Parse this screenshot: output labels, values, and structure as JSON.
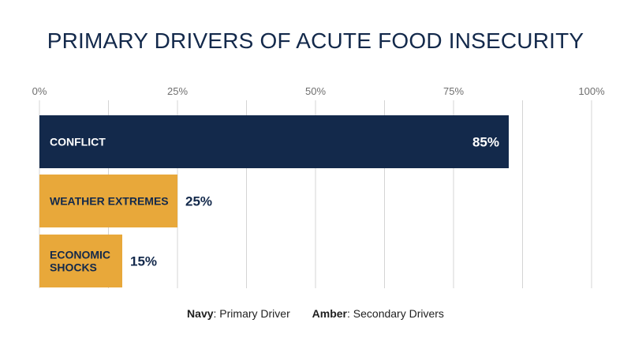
{
  "title": "PRIMARY DRIVERS OF ACUTE FOOD INSECURITY",
  "legend": {
    "items": [
      {
        "key": "Navy",
        "sep": ":",
        "text": " Primary Driver"
      },
      {
        "key": "Amber",
        "sep": ":",
        "text": " Secondary Drivers"
      }
    ]
  },
  "colors": {
    "navy": "#13294b",
    "amber": "#e8a83a",
    "grid": "#d4d4d4",
    "on_navy_text": "#ffffff",
    "on_amber_text": "#13294b",
    "value_outside_text": "#13294b"
  },
  "chart_data": {
    "type": "bar",
    "orientation": "horizontal",
    "title": "PRIMARY DRIVERS OF ACUTE FOOD INSECURITY",
    "xlim": [
      0,
      100
    ],
    "ticks": [
      0,
      25,
      50,
      75,
      100
    ],
    "tick_labels": [
      "0%",
      "25%",
      "50%",
      "75%",
      "100%"
    ],
    "grid": true,
    "legend_placement": "bottom",
    "bars": [
      {
        "label": [
          "CONFLICT"
        ],
        "value": 85,
        "value_label": "85%",
        "color_key": "navy",
        "value_position": "inside"
      },
      {
        "label": [
          "WEATHER EXTREMES"
        ],
        "value": 25,
        "value_label": "25%",
        "color_key": "amber",
        "value_position": "outside"
      },
      {
        "label": [
          "ECONOMIC",
          "SHOCKS"
        ],
        "value": 15,
        "value_label": "15%",
        "color_key": "amber",
        "value_position": "outside"
      }
    ]
  }
}
